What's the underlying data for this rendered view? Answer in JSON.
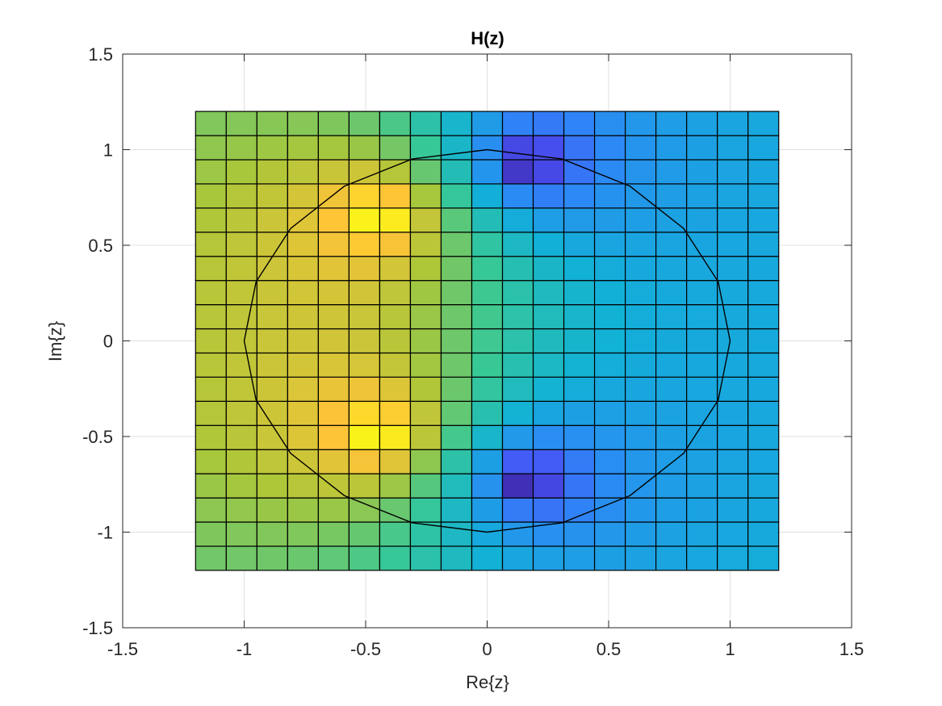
{
  "chart_data": {
    "type": "heatmap",
    "title": "H(z)",
    "xlabel": "Re{z}",
    "ylabel": "Im{z}",
    "xlim": [
      -1.5,
      1.5
    ],
    "ylim": [
      -1.5,
      1.5
    ],
    "grid": true,
    "x_ticks": [
      -1.5,
      -1,
      -0.5,
      0,
      0.5,
      1,
      1.5
    ],
    "y_ticks": [
      -1.5,
      -1,
      -0.5,
      0,
      0.5,
      1,
      1.5
    ],
    "x_tick_labels": [
      "-1.5",
      "-1",
      "-0.5",
      "0",
      "0.5",
      "1",
      "1.5"
    ],
    "y_tick_labels": [
      "-1.5",
      "-1",
      "-0.5",
      "0",
      "0.5",
      "1",
      "1.5"
    ],
    "surface": {
      "x_range": [
        -1.2,
        1.2
      ],
      "y_range": [
        -1.2,
        1.2
      ],
      "cols": 19,
      "rows": 19,
      "poles": [
        [
          -0.5,
          0.6
        ],
        [
          -0.5,
          -0.55
        ]
      ],
      "zeros": [
        [
          0.1,
          0.87
        ],
        [
          0.1,
          -0.78
        ]
      ],
      "colormap": "parula"
    },
    "unit_circle": {
      "center": [
        0,
        0
      ],
      "radius": 1.0,
      "points": 20
    }
  }
}
